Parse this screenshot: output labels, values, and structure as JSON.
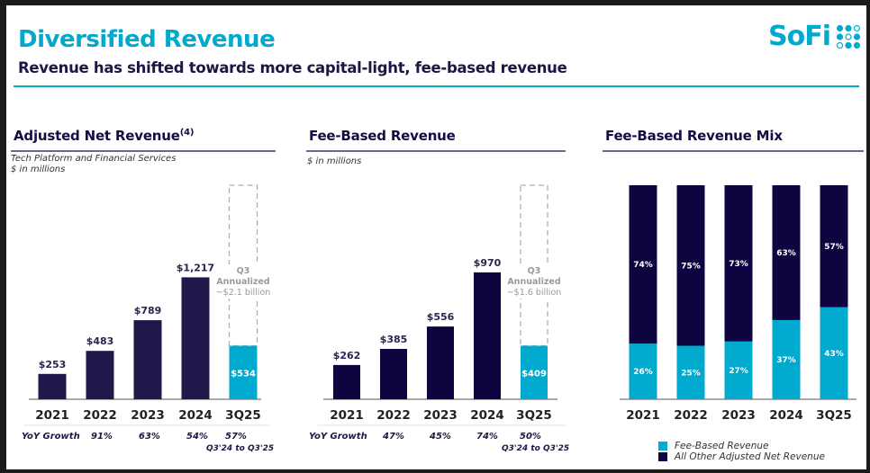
{
  "header": {
    "title": "Diversified Revenue",
    "subtitle": "Revenue has shifted towards more capital-light, fee-based revenue",
    "logo_text": "SoFi",
    "logo_icon": "sofi-dots-logo-icon"
  },
  "colors": {
    "accent": "#00a9ce",
    "navy": "#140c45",
    "bar_navy": "#20184a",
    "dashed": "#b0b0b0",
    "annot_gray": "#9a9a9a"
  },
  "panels": {
    "adjusted": {
      "title": "Adjusted Net Revenue",
      "footnote": "(4)",
      "note1": "Tech Platform and Financial Services",
      "note2": "$ in millions",
      "yoy_label": "YoY Growth",
      "yoy_values": [
        "91%",
        "63%",
        "54%",
        "57%"
      ],
      "yoy_note": "Q3'24 to Q3'25",
      "annotation": [
        "Q3",
        "Annualized",
        "~$2.1 billion"
      ]
    },
    "fee": {
      "title": "Fee-Based Revenue",
      "note1": "$ in millions",
      "yoy_label": "YoY Growth",
      "yoy_values": [
        "47%",
        "45%",
        "74%",
        "50%"
      ],
      "yoy_note": "Q3'24 to Q3'25",
      "annotation": [
        "Q3",
        "Annualized",
        "~$1.6 billion"
      ]
    },
    "mix": {
      "title": "Fee-Based Revenue Mix",
      "legend": [
        "Fee-Based Revenue",
        "All Other Adjusted Net Revenue"
      ]
    }
  },
  "chart_data": [
    {
      "type": "bar",
      "title": "Adjusted Net Revenue",
      "subtitle": "Tech Platform and Financial Services, $ in millions",
      "categories": [
        "2021",
        "2022",
        "2023",
        "2024",
        "3Q25"
      ],
      "values": [
        253,
        483,
        789,
        1217,
        534
      ],
      "labels": [
        "$253",
        "$483",
        "$789",
        "$1,217",
        "$534"
      ],
      "highlight_index": 4,
      "annualized_value": 2136,
      "annualized_label": "~$2.1 billion",
      "xlabel": "",
      "ylabel": "$ in millions",
      "ylim": [
        0,
        2136
      ],
      "grid": false
    },
    {
      "type": "bar",
      "title": "Fee-Based Revenue",
      "subtitle": "$ in millions",
      "categories": [
        "2021",
        "2022",
        "2023",
        "2024",
        "3Q25"
      ],
      "values": [
        262,
        385,
        556,
        970,
        409
      ],
      "labels": [
        "$262",
        "$385",
        "$556",
        "$970",
        "$409"
      ],
      "highlight_index": 4,
      "annualized_value": 1636,
      "annualized_label": "~$1.6 billion",
      "xlabel": "",
      "ylabel": "$ in millions",
      "ylim": [
        0,
        1636
      ],
      "grid": false
    },
    {
      "type": "bar",
      "stacked": true,
      "title": "Fee-Based Revenue Mix",
      "categories": [
        "2021",
        "2022",
        "2023",
        "2024",
        "3Q25"
      ],
      "series": [
        {
          "name": "Fee-Based Revenue",
          "values": [
            26,
            25,
            27,
            37,
            43
          ],
          "color": "#00a9ce"
        },
        {
          "name": "All Other Adjusted Net Revenue",
          "values": [
            74,
            75,
            73,
            63,
            57
          ],
          "color": "#0e0540"
        }
      ],
      "ylim": [
        0,
        100
      ],
      "legend": "bottom",
      "grid": false
    }
  ]
}
